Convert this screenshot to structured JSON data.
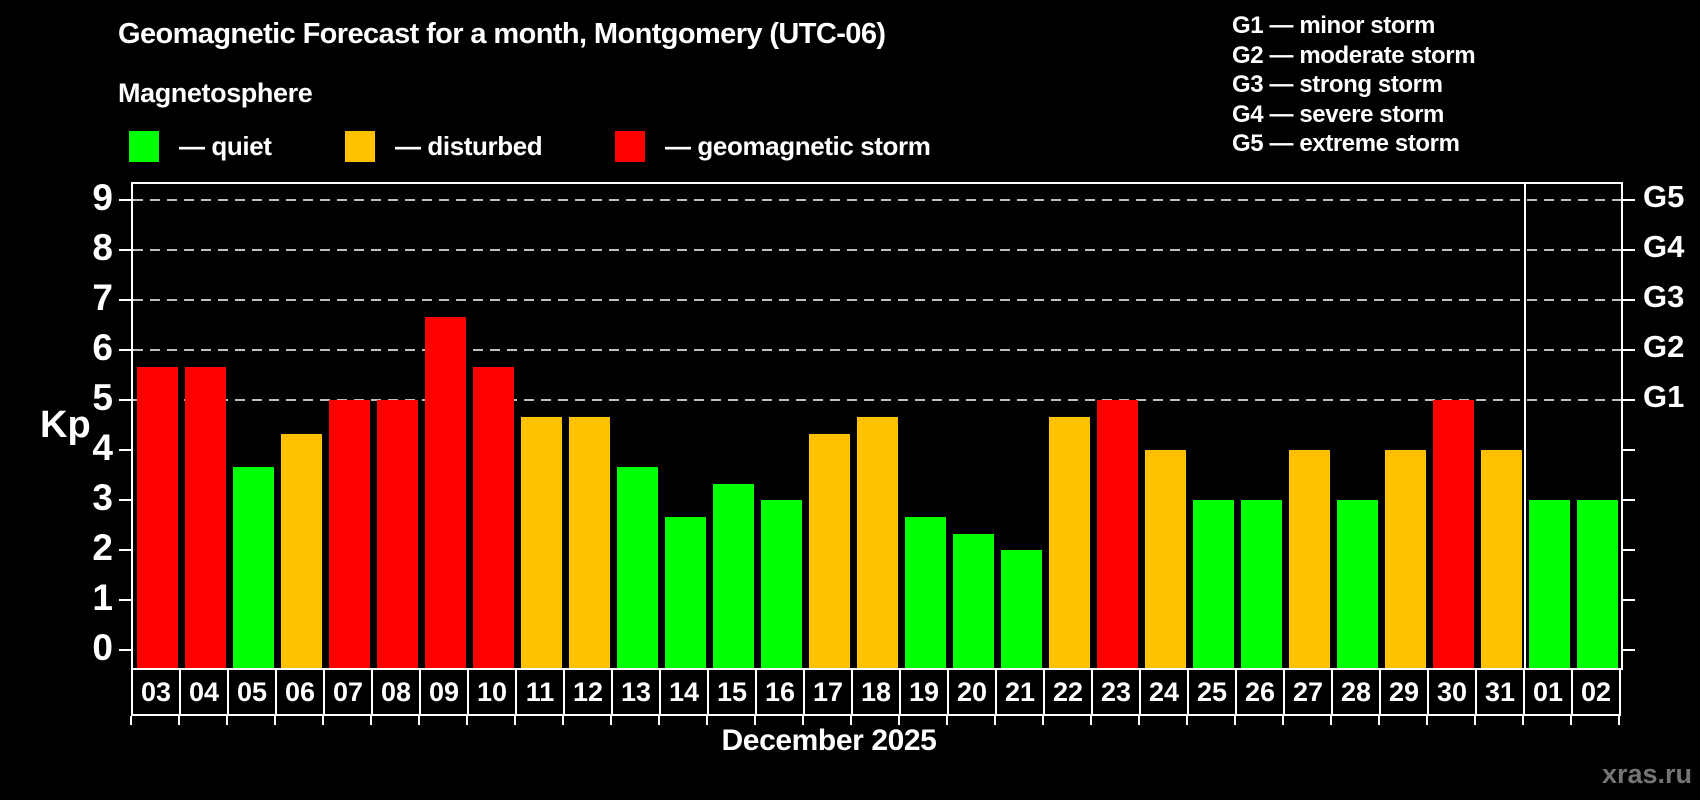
{
  "title": "Geomagnetic Forecast for a month, Montgomery (UTC-06)",
  "subtitle": "Magnetosphere",
  "legend": {
    "items": [
      {
        "key": "quiet",
        "label": "— quiet",
        "color": "#00ff00"
      },
      {
        "key": "disturbed",
        "label": "— disturbed",
        "color": "#ffc000"
      },
      {
        "key": "storm",
        "label": "— geomagnetic storm",
        "color": "#ff0000"
      }
    ]
  },
  "storm_scale": [
    "G1 — minor storm",
    "G2 — moderate storm",
    "G3 — strong storm",
    "G4 — severe storm",
    "G5 — extreme storm"
  ],
  "watermark": "xras.ru",
  "chart_data": {
    "type": "bar",
    "title": "Geomagnetic Forecast for a month, Montgomery (UTC-06)",
    "xlabel": "December 2025",
    "ylabel": "Kp",
    "ylim": [
      0,
      9.4
    ],
    "y_ticks": [
      0,
      1,
      2,
      3,
      4,
      5,
      6,
      7,
      8,
      9
    ],
    "gridlines_at": [
      5,
      6,
      7,
      8,
      9
    ],
    "right_axis_labels": [
      {
        "kp": 5,
        "label": "G1"
      },
      {
        "kp": 6,
        "label": "G2"
      },
      {
        "kp": 7,
        "label": "G3"
      },
      {
        "kp": 8,
        "label": "G4"
      },
      {
        "kp": 9,
        "label": "G5"
      }
    ],
    "separator_after_index": 28,
    "status_colors": {
      "quiet": "#00ff00",
      "disturbed": "#ffc000",
      "storm": "#ff0000"
    },
    "bars": [
      {
        "day": "03",
        "kp": 5.67,
        "status": "storm"
      },
      {
        "day": "04",
        "kp": 5.67,
        "status": "storm"
      },
      {
        "day": "05",
        "kp": 3.67,
        "status": "quiet"
      },
      {
        "day": "06",
        "kp": 4.33,
        "status": "disturbed"
      },
      {
        "day": "07",
        "kp": 5.0,
        "status": "storm"
      },
      {
        "day": "08",
        "kp": 5.0,
        "status": "storm"
      },
      {
        "day": "09",
        "kp": 6.67,
        "status": "storm"
      },
      {
        "day": "10",
        "kp": 5.67,
        "status": "storm"
      },
      {
        "day": "11",
        "kp": 4.67,
        "status": "disturbed"
      },
      {
        "day": "12",
        "kp": 4.67,
        "status": "disturbed"
      },
      {
        "day": "13",
        "kp": 3.67,
        "status": "quiet"
      },
      {
        "day": "14",
        "kp": 2.67,
        "status": "quiet"
      },
      {
        "day": "15",
        "kp": 3.33,
        "status": "quiet"
      },
      {
        "day": "16",
        "kp": 3.0,
        "status": "quiet"
      },
      {
        "day": "17",
        "kp": 4.33,
        "status": "disturbed"
      },
      {
        "day": "18",
        "kp": 4.67,
        "status": "disturbed"
      },
      {
        "day": "19",
        "kp": 2.67,
        "status": "quiet"
      },
      {
        "day": "20",
        "kp": 2.33,
        "status": "quiet"
      },
      {
        "day": "21",
        "kp": 2.0,
        "status": "quiet"
      },
      {
        "day": "22",
        "kp": 4.67,
        "status": "disturbed"
      },
      {
        "day": "23",
        "kp": 5.0,
        "status": "storm"
      },
      {
        "day": "24",
        "kp": 4.0,
        "status": "disturbed"
      },
      {
        "day": "25",
        "kp": 3.0,
        "status": "quiet"
      },
      {
        "day": "26",
        "kp": 3.0,
        "status": "quiet"
      },
      {
        "day": "27",
        "kp": 4.0,
        "status": "disturbed"
      },
      {
        "day": "28",
        "kp": 3.0,
        "status": "quiet"
      },
      {
        "day": "29",
        "kp": 4.0,
        "status": "disturbed"
      },
      {
        "day": "30",
        "kp": 5.0,
        "status": "storm"
      },
      {
        "day": "31",
        "kp": 4.0,
        "status": "disturbed"
      },
      {
        "day": "01",
        "kp": 3.0,
        "status": "quiet"
      },
      {
        "day": "02",
        "kp": 3.0,
        "status": "quiet"
      }
    ]
  }
}
